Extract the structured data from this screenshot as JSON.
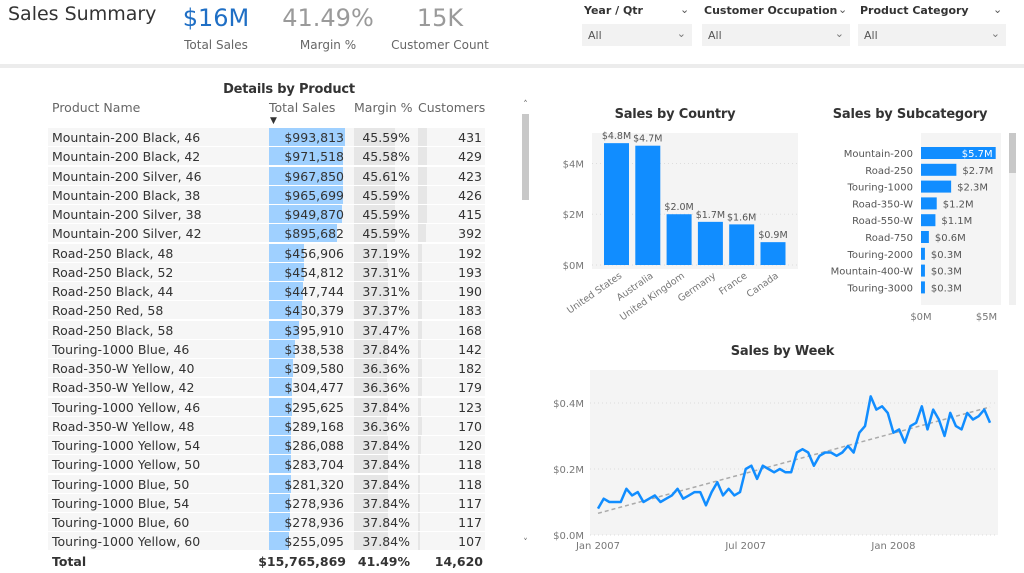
{
  "header": {
    "title": "Sales Summary",
    "kpis": [
      {
        "value": "$16M",
        "label": "Total Sales",
        "color": "#1f6fc5"
      },
      {
        "value": "41.49%",
        "label": "Margin %",
        "color": "#9a9a9a"
      },
      {
        "value": "15K",
        "label": "Customer Count",
        "color": "#9a9a9a"
      }
    ],
    "slicers": [
      {
        "label": "Year / Qtr",
        "value": "All"
      },
      {
        "label": "Customer Occupation",
        "value": "All"
      },
      {
        "label": "Product Category",
        "value": "All"
      }
    ]
  },
  "table": {
    "title": "Details by Product",
    "columns": [
      "Product Name",
      "Total Sales",
      "Margin %",
      "Customers"
    ],
    "sort_indicator": "▼",
    "rows": [
      [
        "Mountain-200 Black, 46",
        "$993,813",
        "45.59%",
        "431"
      ],
      [
        "Mountain-200 Black, 42",
        "$971,518",
        "45.58%",
        "429"
      ],
      [
        "Mountain-200 Silver, 46",
        "$967,850",
        "45.61%",
        "423"
      ],
      [
        "Mountain-200 Black, 38",
        "$965,699",
        "45.59%",
        "426"
      ],
      [
        "Mountain-200 Silver, 38",
        "$949,870",
        "45.59%",
        "415"
      ],
      [
        "Mountain-200 Silver, 42",
        "$895,682",
        "45.59%",
        "392"
      ],
      [
        "Road-250 Black, 48",
        "$456,906",
        "37.19%",
        "192"
      ],
      [
        "Road-250 Black, 52",
        "$454,812",
        "37.31%",
        "193"
      ],
      [
        "Road-250 Black, 44",
        "$447,744",
        "37.31%",
        "190"
      ],
      [
        "Road-250 Red, 58",
        "$430,379",
        "37.37%",
        "183"
      ],
      [
        "Road-250 Black, 58",
        "$395,910",
        "37.47%",
        "168"
      ],
      [
        "Touring-1000 Blue, 46",
        "$338,538",
        "37.84%",
        "142"
      ],
      [
        "Road-350-W Yellow, 40",
        "$309,580",
        "36.36%",
        "182"
      ],
      [
        "Road-350-W Yellow, 42",
        "$304,477",
        "36.36%",
        "179"
      ],
      [
        "Touring-1000 Yellow, 46",
        "$295,625",
        "37.84%",
        "123"
      ],
      [
        "Road-350-W Yellow, 48",
        "$289,168",
        "36.36%",
        "170"
      ],
      [
        "Touring-1000 Yellow, 54",
        "$286,088",
        "37.84%",
        "120"
      ],
      [
        "Touring-1000 Yellow, 50",
        "$283,704",
        "37.84%",
        "118"
      ],
      [
        "Touring-1000 Blue, 50",
        "$281,320",
        "37.84%",
        "118"
      ],
      [
        "Touring-1000 Blue, 54",
        "$278,936",
        "37.84%",
        "117"
      ],
      [
        "Touring-1000 Blue, 60",
        "$278,936",
        "37.84%",
        "117"
      ],
      [
        "Touring-1000 Yellow, 60",
        "$255,095",
        "37.84%",
        "107"
      ]
    ],
    "total": {
      "label": "Total",
      "sales": "$15,765,869",
      "margin": "41.49%",
      "customers": "14,620"
    }
  },
  "chart_data": [
    {
      "type": "bar",
      "title": "Sales by Country",
      "categories": [
        "United States",
        "Australia",
        "United Kingdom",
        "Germany",
        "France",
        "Canada"
      ],
      "values": [
        4.8,
        4.7,
        2.0,
        1.7,
        1.6,
        0.9
      ],
      "data_labels": [
        "$4.8M",
        "$4.7M",
        "$2.0M",
        "$1.7M",
        "$1.6M",
        "$0.9M"
      ],
      "yticks": [
        "$0M",
        "$2M",
        "$4M"
      ],
      "ytick_values": [
        0,
        2,
        4
      ],
      "ylim": [
        0,
        5.2
      ],
      "units": "$M",
      "color": "#118dff",
      "grid": true
    },
    {
      "type": "bar",
      "orientation": "horizontal",
      "title": "Sales by Subcategory",
      "categories": [
        "Mountain-200",
        "Road-250",
        "Touring-1000",
        "Road-350-W",
        "Road-550-W",
        "Road-750",
        "Touring-2000",
        "Mountain-400-W",
        "Touring-3000"
      ],
      "values": [
        5.7,
        2.7,
        2.3,
        1.2,
        1.1,
        0.6,
        0.3,
        0.3,
        0.3
      ],
      "data_labels": [
        "$5.7M",
        "$2.7M",
        "$2.3M",
        "$1.2M",
        "$1.1M",
        "$0.6M",
        "$0.3M",
        "$0.3M",
        "$0.3M"
      ],
      "xticks": [
        "$0M",
        "$5M"
      ],
      "xtick_values": [
        0,
        5
      ],
      "xlim": [
        0,
        5.8
      ],
      "units": "$M",
      "color": "#118dff"
    },
    {
      "type": "line",
      "title": "Sales by Week",
      "x_start": "Jan 2007",
      "x_interval": "week",
      "xticks": [
        "Jan 2007",
        "Jul 2007",
        "Jan 2008"
      ],
      "xtick_weeks": [
        0,
        26,
        52
      ],
      "yticks": [
        "$0.0M",
        "$0.2M",
        "$0.4M"
      ],
      "ytick_values": [
        0,
        0.2,
        0.4
      ],
      "ylim": [
        0,
        0.5
      ],
      "units": "$M",
      "color": "#118dff",
      "trendline": true,
      "grid": true,
      "values": [
        0.08,
        0.11,
        0.1,
        0.1,
        0.1,
        0.14,
        0.12,
        0.13,
        0.1,
        0.11,
        0.12,
        0.1,
        0.11,
        0.12,
        0.14,
        0.11,
        0.12,
        0.13,
        0.13,
        0.09,
        0.13,
        0.16,
        0.12,
        0.14,
        0.12,
        0.13,
        0.2,
        0.21,
        0.17,
        0.21,
        0.2,
        0.19,
        0.2,
        0.19,
        0.19,
        0.25,
        0.26,
        0.25,
        0.21,
        0.24,
        0.25,
        0.25,
        0.24,
        0.25,
        0.27,
        0.25,
        0.31,
        0.33,
        0.42,
        0.38,
        0.39,
        0.37,
        0.31,
        0.32,
        0.28,
        0.33,
        0.34,
        0.39,
        0.32,
        0.38,
        0.35,
        0.3,
        0.37,
        0.33,
        0.32,
        0.37,
        0.35,
        0.36,
        0.38,
        0.34
      ]
    }
  ]
}
